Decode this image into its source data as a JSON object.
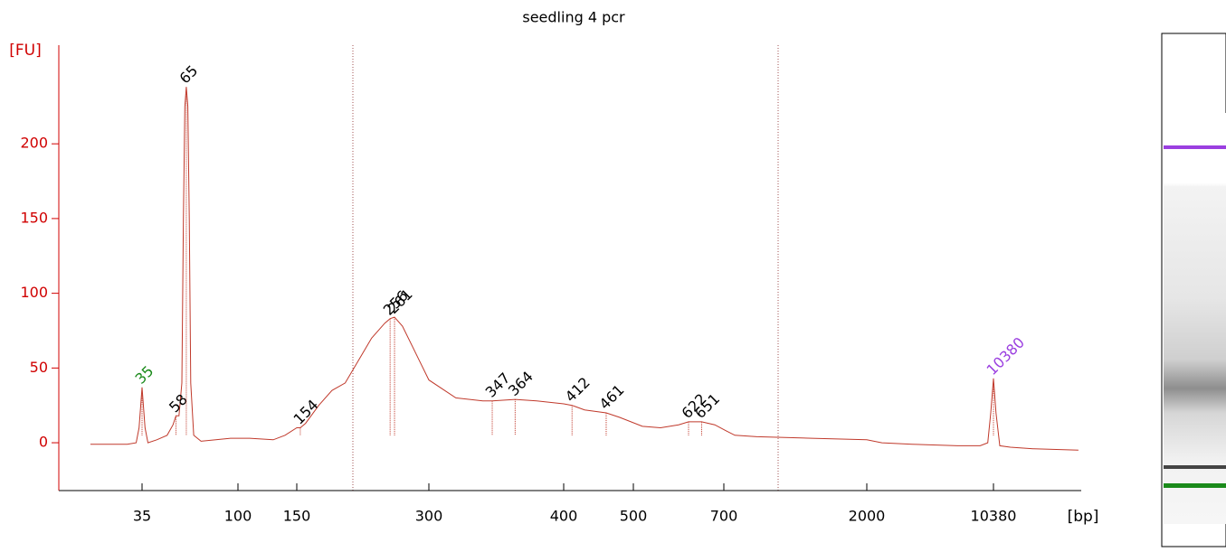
{
  "chart_data": {
    "type": "line",
    "title": "seedling 4 pcr",
    "y_label": "[FU]",
    "x_label": "[bp]",
    "series": [
      {
        "color": "#c0392b",
        "x": [
          0,
          25,
          31,
          33,
          35,
          37,
          39,
          45,
          52,
          56,
          58,
          60,
          62,
          63,
          64,
          65,
          66,
          67,
          68,
          70,
          75,
          85,
          95,
          110,
          130,
          140,
          150,
          154,
          160,
          175,
          190,
          205,
          220,
          235,
          250,
          256,
          261,
          270,
          285,
          300,
          320,
          340,
          347,
          364,
          380,
          400,
          412,
          430,
          461,
          480,
          520,
          560,
          600,
          622,
          651,
          680,
          720,
          800,
          1000,
          1500,
          2000,
          3000,
          5000,
          8000,
          9500,
          10000,
          10200,
          10380,
          10550,
          10800,
          11500,
          13000,
          16000
        ],
        "values": [
          -1,
          -1,
          0,
          10,
          37,
          10,
          0,
          2,
          5,
          12,
          18,
          18,
          40,
          150,
          225,
          238,
          225,
          150,
          40,
          5,
          1,
          2,
          3,
          3,
          2,
          5,
          10,
          10,
          13,
          25,
          35,
          40,
          55,
          70,
          80,
          83,
          84,
          78,
          60,
          42,
          30,
          28,
          28,
          29,
          28,
          26,
          25,
          22,
          20,
          17,
          11,
          10,
          12,
          14,
          14,
          12,
          8,
          5,
          4,
          3,
          2,
          0,
          -1,
          -2,
          -2,
          0,
          20,
          43,
          20,
          -2,
          -3,
          -4,
          -5
        ]
      }
    ],
    "peaks": {
      "x": [
        35,
        58,
        65,
        154,
        256,
        261,
        347,
        364,
        412,
        461,
        622,
        651,
        10380
      ],
      "values": [
        37,
        18,
        238,
        10,
        83,
        84,
        28,
        29,
        25,
        20,
        14,
        14,
        43
      ],
      "labels": [
        "35",
        "58",
        "65",
        "154",
        "256",
        "261",
        "347",
        "364",
        "412",
        "461",
        "622",
        "651",
        "10380"
      ],
      "label_colors": [
        "#1a8a1a",
        "#000000",
        "#000000",
        "#000000",
        "#000000",
        "#000000",
        "#000000",
        "#000000",
        "#000000",
        "#000000",
        "#000000",
        "#000000",
        "#9b3fe0"
      ]
    },
    "ylim": [
      -32,
      266
    ],
    "yticks": [
      0,
      50,
      100,
      150,
      200
    ],
    "xticks": [
      35,
      100,
      150,
      300,
      400,
      500,
      700,
      2000,
      10380
    ],
    "axis_color": "#d00000"
  }
}
